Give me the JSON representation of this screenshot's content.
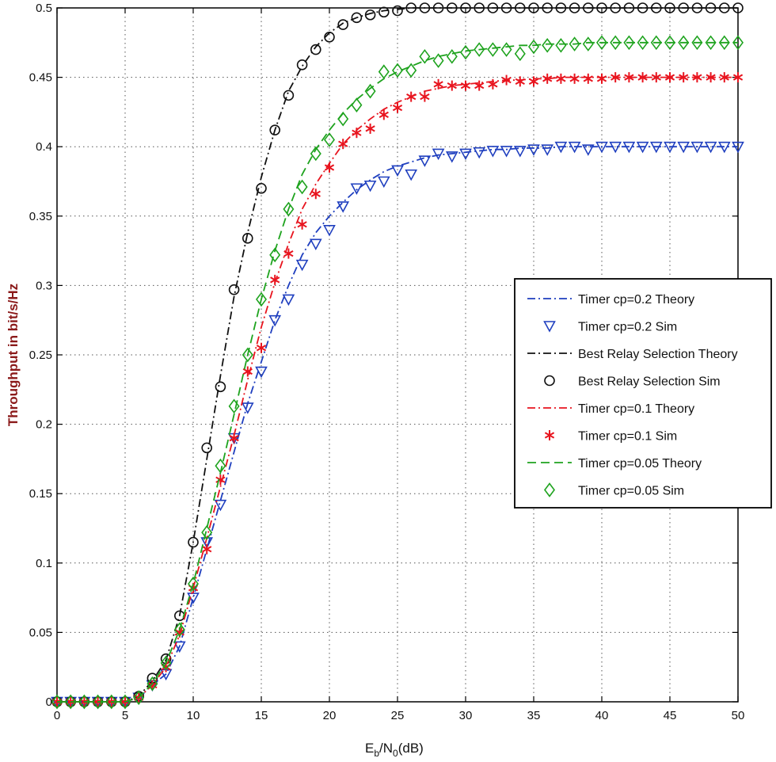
{
  "chart_data": {
    "type": "line",
    "title": "",
    "xlabel": {
      "E": "E",
      "b": "b",
      "slash": "/N",
      "zero": "0",
      "unit": "(dB)"
    },
    "ylabel": "Throughput in bit/s/Hz",
    "xlim": [
      0,
      50
    ],
    "ylim": [
      0,
      0.5
    ],
    "xticks": [
      0,
      5,
      10,
      15,
      20,
      25,
      30,
      35,
      40,
      45,
      50
    ],
    "yticks": [
      0,
      0.05,
      0.1,
      0.15,
      0.2,
      0.25,
      0.3,
      0.35,
      0.4,
      0.45,
      0.5
    ],
    "ytick_labels": [
      "0",
      "0.05",
      "0.1",
      "0.15",
      "0.2",
      "0.25",
      "0.3",
      "0.35",
      "0.4",
      "0.45",
      "0.5"
    ],
    "grid": true,
    "legend_position": "middle-right",
    "x": [
      0,
      1,
      2,
      3,
      4,
      5,
      6,
      7,
      8,
      9,
      10,
      11,
      12,
      13,
      14,
      15,
      16,
      17,
      18,
      19,
      20,
      21,
      22,
      23,
      24,
      25,
      26,
      27,
      28,
      29,
      30,
      31,
      32,
      33,
      34,
      35,
      36,
      37,
      38,
      39,
      40,
      41,
      42,
      43,
      44,
      45,
      46,
      47,
      48,
      49,
      50
    ],
    "series": [
      {
        "name": "Timer cp=0.2 Theory",
        "style": "dashdot",
        "color": "#1f3fbf",
        "values": [
          0,
          0,
          0,
          0,
          0,
          0,
          0.003,
          0.012,
          0.02,
          0.04,
          0.075,
          0.11,
          0.145,
          0.18,
          0.215,
          0.245,
          0.275,
          0.3,
          0.322,
          0.338,
          0.35,
          0.36,
          0.369,
          0.376,
          0.382,
          0.386,
          0.389,
          0.392,
          0.394,
          0.395,
          0.396,
          0.397,
          0.398,
          0.398,
          0.399,
          0.399,
          0.399,
          0.4,
          0.4,
          0.4,
          0.4,
          0.4,
          0.4,
          0.4,
          0.4,
          0.4,
          0.4,
          0.4,
          0.4,
          0.4,
          0.4
        ]
      },
      {
        "name": "Timer cp=0.2 Sim",
        "style": "marker-triangle-down",
        "color": "#1f3fbf",
        "values": [
          0,
          0,
          0,
          0,
          0,
          0,
          0.003,
          0.012,
          0.02,
          0.04,
          0.075,
          0.115,
          0.142,
          0.19,
          0.212,
          0.238,
          0.275,
          0.29,
          0.315,
          0.33,
          0.34,
          0.357,
          0.37,
          0.372,
          0.375,
          0.383,
          0.38,
          0.39,
          0.395,
          0.393,
          0.395,
          0.396,
          0.397,
          0.397,
          0.397,
          0.398,
          0.398,
          0.4,
          0.4,
          0.398,
          0.4,
          0.4,
          0.4,
          0.4,
          0.4,
          0.4,
          0.4,
          0.4,
          0.4,
          0.4,
          0.4
        ]
      },
      {
        "name": "Best Relay Selection Theory",
        "style": "dashdot",
        "color": "#111111",
        "values": [
          0,
          0,
          0,
          0,
          0,
          0,
          0.004,
          0.015,
          0.03,
          0.062,
          0.115,
          0.175,
          0.235,
          0.292,
          0.338,
          0.378,
          0.412,
          0.44,
          0.458,
          0.472,
          0.482,
          0.489,
          0.493,
          0.496,
          0.498,
          0.499,
          0.5,
          0.5,
          0.5,
          0.5,
          0.5,
          0.5,
          0.5,
          0.5,
          0.5,
          0.5,
          0.5,
          0.5,
          0.5,
          0.5,
          0.5,
          0.5,
          0.5,
          0.5,
          0.5,
          0.5,
          0.5,
          0.5,
          0.5,
          0.5,
          0.5
        ]
      },
      {
        "name": "Best Relay Selection Sim",
        "style": "marker-circle",
        "color": "#111111",
        "values": [
          0,
          0,
          0,
          0,
          0,
          0,
          0.004,
          0.017,
          0.031,
          0.062,
          0.115,
          0.183,
          0.227,
          0.297,
          0.334,
          0.37,
          0.412,
          0.437,
          0.459,
          0.47,
          0.479,
          0.488,
          0.493,
          0.495,
          0.497,
          0.498,
          0.5,
          0.5,
          0.5,
          0.5,
          0.5,
          0.5,
          0.5,
          0.5,
          0.5,
          0.5,
          0.5,
          0.5,
          0.5,
          0.5,
          0.5,
          0.5,
          0.5,
          0.5,
          0.5,
          0.5,
          0.5,
          0.5,
          0.5,
          0.5,
          0.5
        ]
      },
      {
        "name": "Timer cp=0.1 Theory",
        "style": "dashdot",
        "color": "#e8141e",
        "values": [
          0,
          0,
          0,
          0,
          0,
          0,
          0.003,
          0.012,
          0.025,
          0.048,
          0.082,
          0.118,
          0.155,
          0.192,
          0.232,
          0.27,
          0.302,
          0.33,
          0.355,
          0.373,
          0.388,
          0.402,
          0.412,
          0.42,
          0.427,
          0.432,
          0.436,
          0.44,
          0.442,
          0.444,
          0.445,
          0.446,
          0.447,
          0.448,
          0.448,
          0.449,
          0.449,
          0.45,
          0.45,
          0.45,
          0.45,
          0.45,
          0.45,
          0.45,
          0.45,
          0.45,
          0.45,
          0.45,
          0.45,
          0.45,
          0.45
        ]
      },
      {
        "name": "Timer cp=0.1 Sim",
        "style": "marker-asterisk",
        "color": "#e8141e",
        "values": [
          0,
          0,
          0,
          0,
          0,
          0,
          0.003,
          0.012,
          0.025,
          0.05,
          0.082,
          0.11,
          0.16,
          0.19,
          0.238,
          0.255,
          0.304,
          0.323,
          0.344,
          0.366,
          0.385,
          0.402,
          0.41,
          0.413,
          0.423,
          0.428,
          0.436,
          0.436,
          0.445,
          0.444,
          0.444,
          0.444,
          0.445,
          0.448,
          0.447,
          0.447,
          0.449,
          0.449,
          0.449,
          0.449,
          0.449,
          0.45,
          0.45,
          0.45,
          0.45,
          0.45,
          0.45,
          0.45,
          0.45,
          0.45,
          0.45
        ]
      },
      {
        "name": "Timer cp=0.05 Theory",
        "style": "dashed",
        "color": "#1ea31e",
        "values": [
          0,
          0,
          0,
          0,
          0,
          0,
          0.003,
          0.013,
          0.028,
          0.052,
          0.085,
          0.125,
          0.165,
          0.207,
          0.25,
          0.29,
          0.325,
          0.355,
          0.38,
          0.398,
          0.412,
          0.424,
          0.434,
          0.442,
          0.449,
          0.454,
          0.458,
          0.462,
          0.465,
          0.467,
          0.469,
          0.47,
          0.471,
          0.472,
          0.473,
          0.473,
          0.474,
          0.474,
          0.474,
          0.475,
          0.475,
          0.475,
          0.475,
          0.475,
          0.475,
          0.475,
          0.475,
          0.475,
          0.475,
          0.475,
          0.475
        ]
      },
      {
        "name": "Timer cp=0.05 Sim",
        "style": "marker-diamond",
        "color": "#1ea31e",
        "values": [
          0,
          0,
          0,
          0,
          0,
          0,
          0.003,
          0.013,
          0.028,
          0.052,
          0.085,
          0.122,
          0.17,
          0.213,
          0.25,
          0.29,
          0.322,
          0.355,
          0.371,
          0.395,
          0.405,
          0.42,
          0.43,
          0.44,
          0.454,
          0.455,
          0.455,
          0.465,
          0.462,
          0.465,
          0.468,
          0.47,
          0.47,
          0.47,
          0.467,
          0.472,
          0.473,
          0.473,
          0.474,
          0.474,
          0.475,
          0.475,
          0.475,
          0.475,
          0.475,
          0.475,
          0.475,
          0.475,
          0.475,
          0.475,
          0.475
        ]
      }
    ]
  }
}
